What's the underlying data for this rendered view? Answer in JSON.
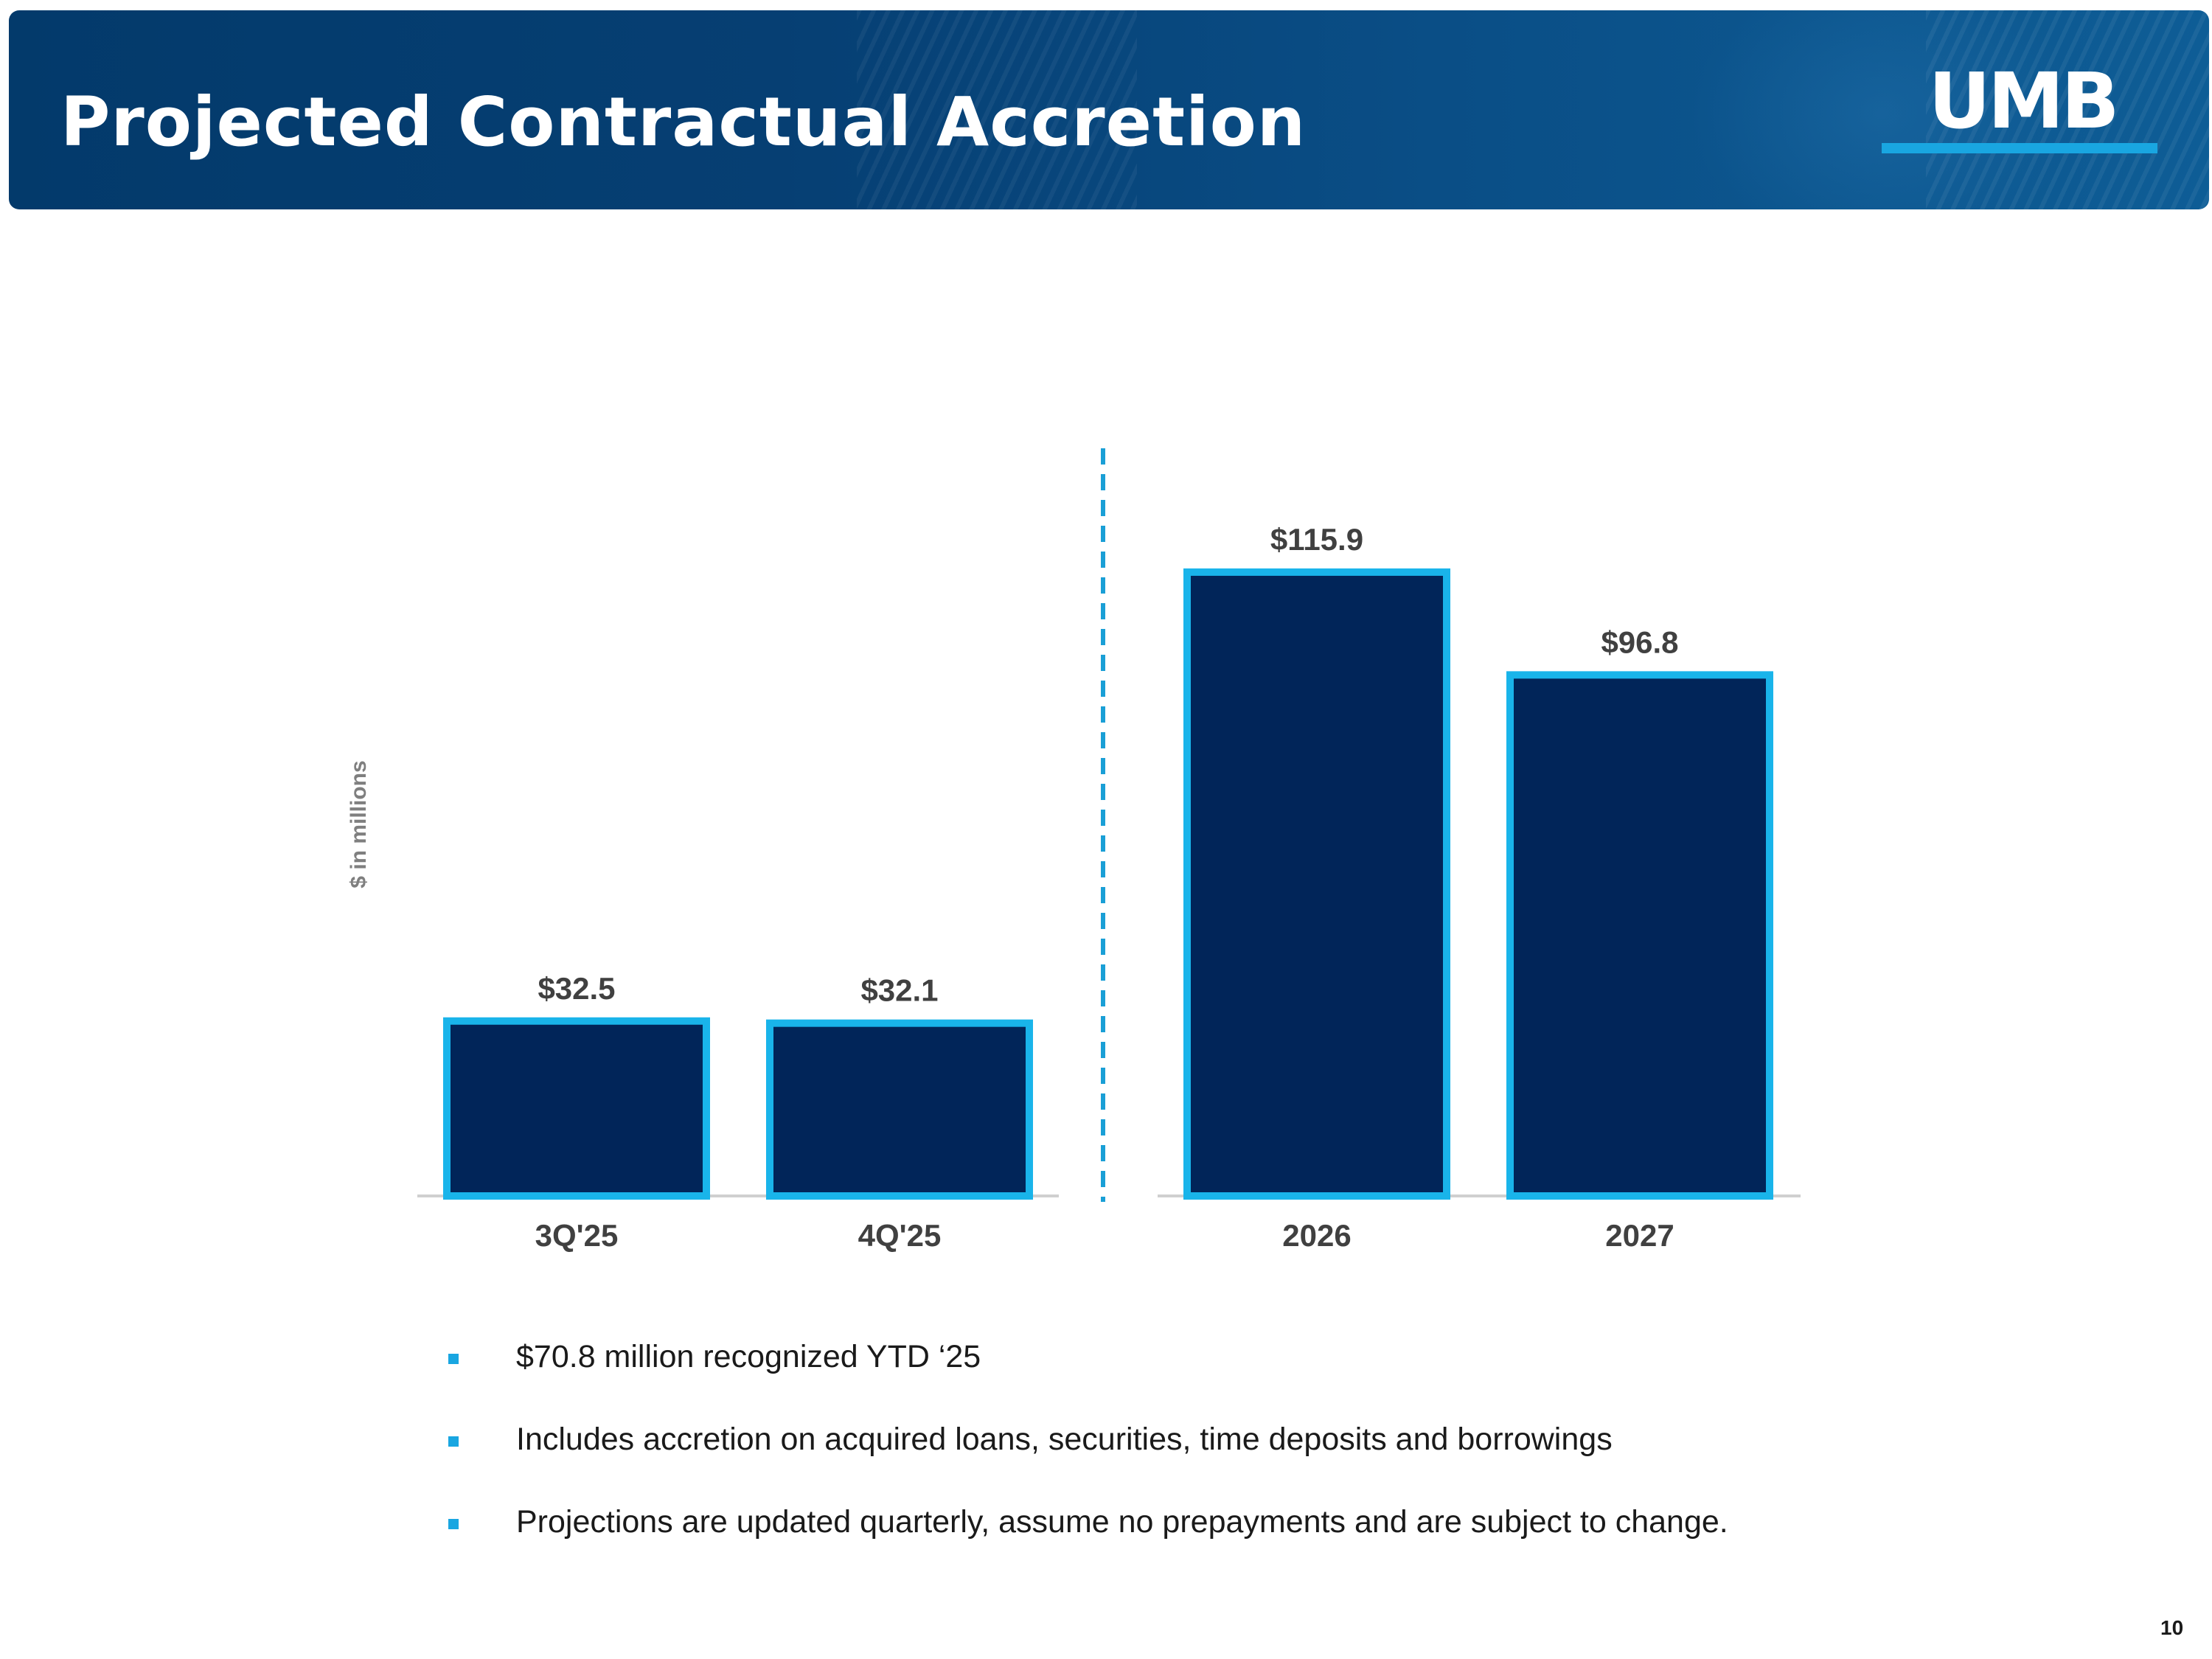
{
  "header": {
    "title": "Projected Contractual Accretion",
    "logo_text": "UMB"
  },
  "chart_data": {
    "type": "bar",
    "ylabel": "$ in millions",
    "categories": [
      "3Q'25",
      "4Q'25",
      "2026",
      "2027"
    ],
    "values": [
      32.5,
      32.1,
      115.9,
      96.8
    ],
    "data_labels": [
      "$32.5",
      "$32.1",
      "$115.9",
      "$96.8"
    ],
    "ylim": [
      0,
      140
    ],
    "groups": [
      [
        "3Q'25",
        "4Q'25"
      ],
      [
        "2026",
        "2027"
      ]
    ],
    "separator": "dashed line between 4Q'25 and 2026",
    "colors": {
      "bar_fill": "#012559",
      "bar_outline": "#19b4ea",
      "separator": "#1a9fd6",
      "baseline": "#d0d0d0",
      "text": "#404040",
      "axis_label": "#7f7f7f"
    }
  },
  "bullets": [
    "$70.8 million recognized YTD ‘25",
    "Includes accretion on acquired loans, securities, time deposits and borrowings",
    "Projections are updated quarterly, assume no prepayments and are subject to change."
  ],
  "page_number": "10"
}
